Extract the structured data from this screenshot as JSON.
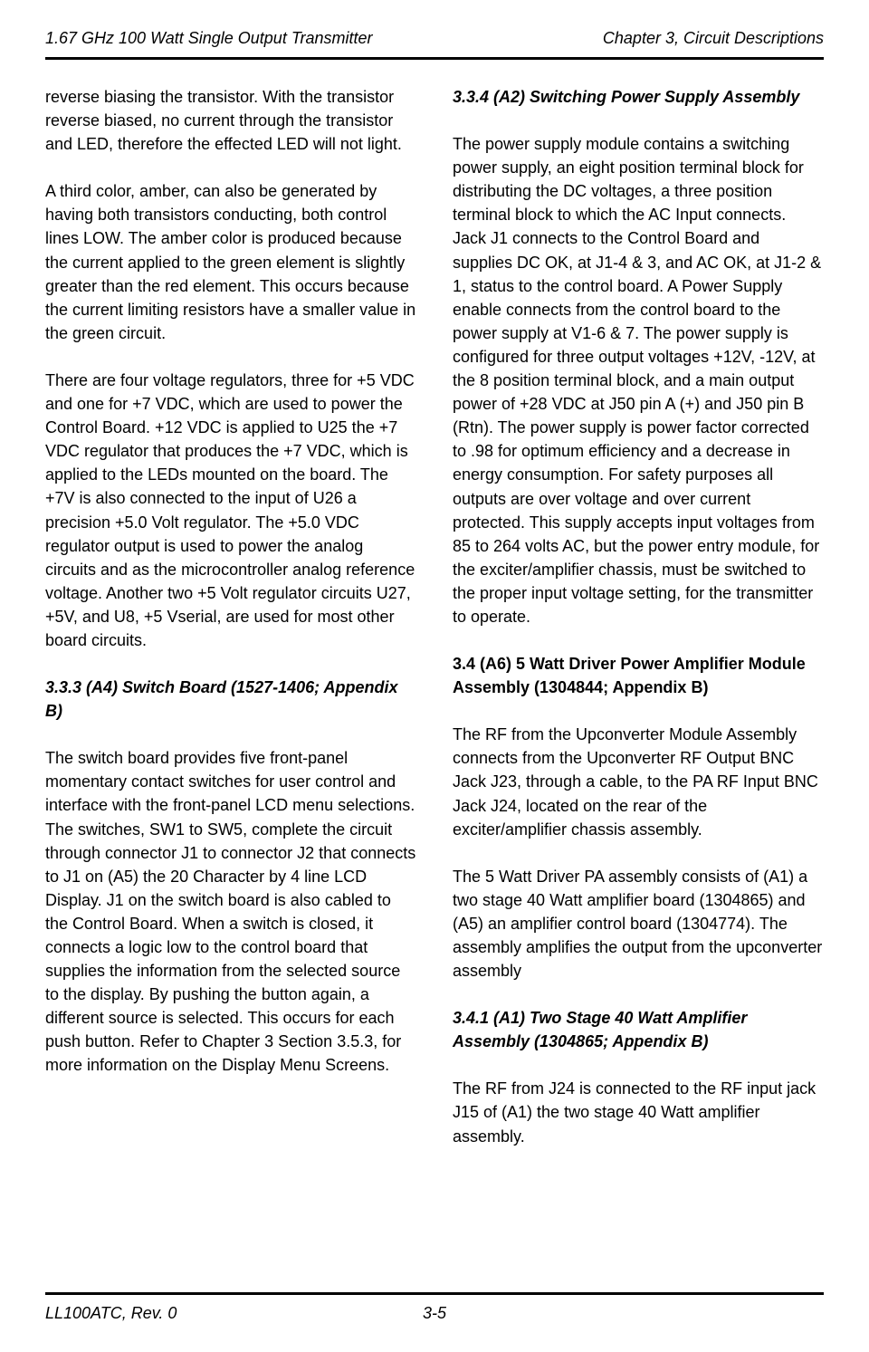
{
  "header": {
    "left": "1.67 GHz 100 Watt Single Output Transmitter",
    "right": "Chapter 3, Circuit Descriptions"
  },
  "leftColumn": {
    "para1": "reverse biasing the transistor.  With the transistor reverse biased, no current through the transistor and LED, therefore the effected LED will not light.",
    "para2": "A third color, amber, can also be generated by having both transistors conducting, both control lines LOW.  The amber color is produced because the current applied to the green element is slightly greater than the red element.  This occurs because the current limiting resistors have a smaller value in the green circuit.",
    "para3": "There are four voltage regulators, three for +5 VDC and one for +7 VDC, which are used to power the Control Board.  +12 VDC is applied to U25 the +7 VDC regulator that produces the +7 VDC, which is applied to the LEDs mounted on the board.  The +7V is also connected to the input of U26 a precision +5.0 Volt regulator.  The +5.0 VDC regulator output is used to power the analog circuits and as the microcontroller analog reference voltage.  Another two +5 Volt regulator circuits U27, +5V, and U8, +5 Vserial, are used for most other board circuits.",
    "section333_title": "3.3.3 (A4) Switch Board (1527-1406; Appendix B)",
    "para4": "The switch board provides five front-panel momentary contact switches for user control and interface with the front-panel LCD menu selections. The switches, SW1 to SW5, complete the circuit through connector J1 to connector J2 that connects to J1 on (A5) the 20 Character by 4 line LCD Display. J1 on the switch board is also cabled to the Control Board.  When a switch is closed, it connects a logic low to the control board that supplies the information from the selected source to the display.  By pushing the button again, a different source is selected.  This occurs for each push button.  Refer to Chapter 3 Section 3.5.3, for more information on the Display Menu Screens."
  },
  "rightColumn": {
    "section334_title": "3.3.4 (A2) Switching Power Supply Assembly",
    "para1": "The power supply module contains a switching power supply, an eight position terminal block for distributing the DC voltages, a three position terminal block to which the AC Input connects.  Jack J1 connects to the Control Board and supplies DC OK, at J1-4 & 3, and AC OK, at J1-2 & 1, status to the control board.  A Power Supply enable connects from the control board to the power supply at V1-6 & 7.  The power supply is configured for three output voltages +12V, -12V, at the 8 position terminal block, and a main output power of +28 VDC at J50 pin A (+) and J50 pin B (Rtn).  The power supply is power factor corrected to .98 for optimum efficiency and a decrease in energy consumption.  For safety purposes all outputs are over voltage and over current protected.  This supply accepts input voltages from 85 to 264 volts AC, but the power entry module, for the exciter/amplifier chassis, must be switched to the proper input voltage setting, for the transmitter to operate.",
    "section34_title": "3.4 (A6) 5 Watt Driver Power Amplifier Module Assembly (1304844; Appendix B)",
    "para2": "The RF from the Upconverter Module Assembly connects from the Upconverter RF Output BNC Jack J23, through a cable, to the PA RF Input BNC Jack J24, located on the rear of the exciter/amplifier chassis assembly.",
    "para3": "The 5 Watt Driver PA assembly consists of (A1) a two stage 40 Watt amplifier board (1304865) and (A5) an amplifier control board (1304774).  The assembly amplifies the output from the upconverter assembly",
    "section341_title": "3.4.1 (A1) Two Stage 40 Watt Amplifier Assembly (1304865; Appendix B)",
    "para4": "The RF from J24 is connected to the RF input jack J15 of (A1) the two stage 40 Watt amplifier assembly."
  },
  "footer": {
    "left": "LL100ATC, Rev. 0",
    "page": "3-5"
  }
}
